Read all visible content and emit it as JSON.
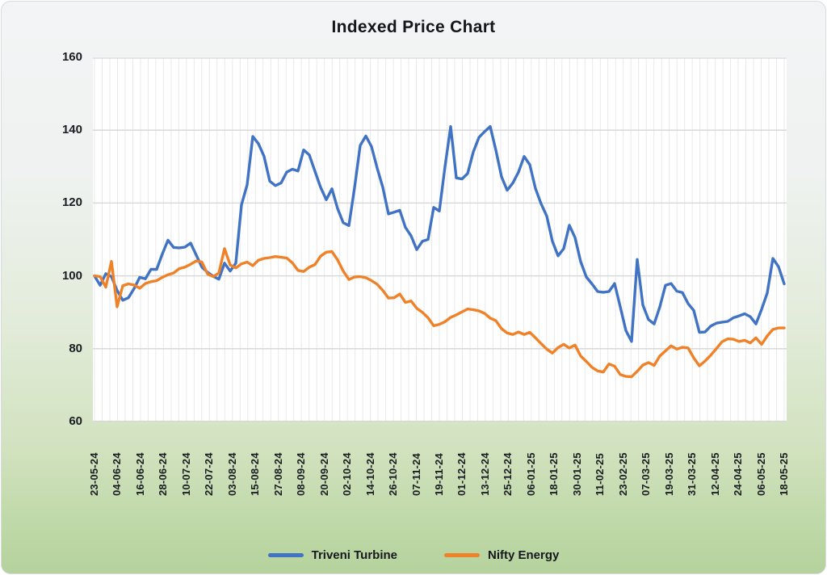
{
  "title": "Indexed Price Chart",
  "legend": {
    "position": "bottom",
    "items": [
      {
        "label": "Triveni Turbine",
        "color": "#4173C4"
      },
      {
        "label": "Nifty Energy",
        "color": "#EF8229"
      }
    ]
  },
  "colors": {
    "series_blue": "#4173C4",
    "series_orange": "#EF8229",
    "grid_horizontal": "#d6d6d6",
    "grid_vertical": "#e9e9e9",
    "plot_background": "#ffffff",
    "text": "#15181d"
  },
  "chart_data": {
    "type": "line",
    "title": "Indexed Price Chart",
    "xlabel": "",
    "ylabel": "",
    "ylim": [
      60,
      160
    ],
    "y_ticks": [
      60,
      80,
      100,
      120,
      140,
      160
    ],
    "grid": "on",
    "legend_position": "bottom",
    "x_tick_labels": [
      "23-05-24",
      "04-06-24",
      "16-06-24",
      "28-06-24",
      "10-07-24",
      "22-07-24",
      "03-08-24",
      "15-08-24",
      "27-08-24",
      "08-09-24",
      "20-09-24",
      "02-10-24",
      "14-10-24",
      "26-10-24",
      "07-11-24",
      "19-11-24",
      "01-12-24",
      "13-12-24",
      "25-12-24",
      "06-01-25",
      "18-01-25",
      "30-01-25",
      "11-02-25",
      "23-02-25",
      "07-03-25",
      "19-03-25",
      "31-03-25",
      "12-04-25",
      "24-04-25",
      "06-05-25",
      "18-05-25"
    ],
    "series": [
      {
        "name": "Triveni Turbine",
        "color": "#4173C4",
        "values": [
          100,
          97.4,
          100.6,
          99.8,
          96,
          93.3,
          94,
          96.5,
          99.6,
          99.2,
          101.8,
          101.8,
          106,
          109.8,
          107.8,
          107.7,
          107.9,
          109,
          105.7,
          102.4,
          101,
          99.9,
          99.1,
          103.5,
          101.3,
          103.5,
          119.5,
          125,
          138.3,
          136.3,
          132.8,
          126,
          124.8,
          125.5,
          128.5,
          129.3,
          128.8,
          134.6,
          133.2,
          128.7,
          124.3,
          120.9,
          123.9,
          118.5,
          114.6,
          113.8,
          124.2,
          135.8,
          138.4,
          135.5,
          129.6,
          124.3,
          117,
          117.5,
          118,
          113.3,
          111,
          107.2,
          109.5,
          110,
          118.8,
          117.8,
          130,
          141,
          126.9,
          126.6,
          128.1,
          134,
          138,
          139.6,
          141,
          134.5,
          127.2,
          123.5,
          125.5,
          128.5,
          132.8,
          130.5,
          124,
          119.8,
          116.4,
          109.5,
          105.5,
          107.5,
          113.9,
          110.5,
          103.9,
          99.7,
          97.8,
          95.7,
          95.5,
          95.7,
          97.9,
          91.5,
          85,
          82,
          104.5,
          92,
          88,
          86.8,
          91.5,
          97.4,
          97.9,
          95.8,
          95.4,
          92.4,
          90.5,
          84.5,
          84.6,
          86.2,
          87,
          87.3,
          87.5,
          88.5,
          89,
          89.6,
          88.8,
          86.8,
          90.8,
          95.3,
          104.8,
          102.5,
          97.8
        ]
      },
      {
        "name": "Nifty Energy",
        "color": "#EF8229",
        "values": [
          100,
          99.8,
          96.9,
          104,
          91.5,
          97.3,
          97.8,
          97.5,
          96.6,
          97.9,
          98.4,
          98.7,
          99.6,
          100.3,
          100.8,
          102,
          102.4,
          103.2,
          104.1,
          103.8,
          100.5,
          99.8,
          100.8,
          107.5,
          103,
          102.2,
          103.3,
          103.8,
          102.8,
          104.3,
          104.8,
          105,
          105.3,
          105.1,
          104.9,
          103.6,
          101.5,
          101.2,
          102.4,
          103.1,
          105.4,
          106.5,
          106.7,
          104.4,
          101.3,
          99,
          99.7,
          99.8,
          99.5,
          98.7,
          97.7,
          96,
          93.9,
          94,
          95,
          92.7,
          93.1,
          91.1,
          90,
          88.5,
          86.3,
          86.7,
          87.4,
          88.6,
          89.3,
          90.1,
          90.9,
          90.7,
          90.4,
          89.7,
          88.4,
          87.7,
          85.5,
          84.3,
          83.9,
          84.6,
          83.9,
          84.5,
          83,
          81.4,
          79.9,
          78.8,
          80.3,
          81.2,
          80.2,
          81,
          78,
          76.5,
          74.9,
          73.9,
          73.6,
          75.8,
          75.2,
          72.9,
          72.4,
          72.3,
          73.8,
          75.5,
          76.2,
          75.4,
          78,
          79.4,
          80.8,
          79.9,
          80.4,
          80.2,
          77.5,
          75.3,
          76.6,
          78.2,
          80,
          81.9,
          82.7,
          82.6,
          82,
          82.3,
          81.6,
          83,
          81.2,
          83.5,
          85.3,
          85.7,
          85.7
        ]
      }
    ]
  }
}
